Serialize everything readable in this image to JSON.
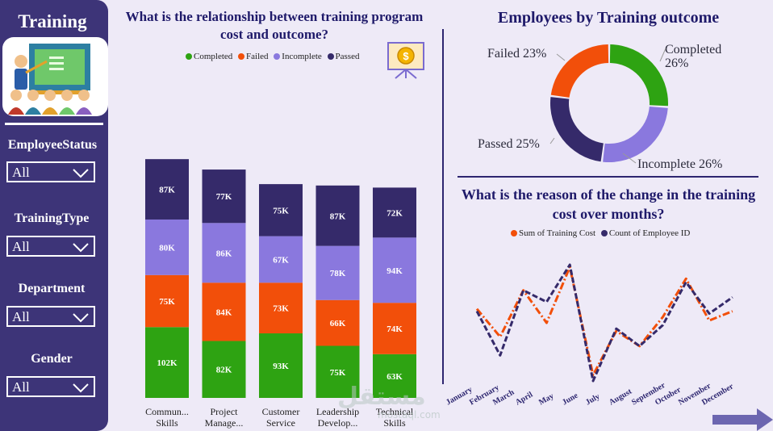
{
  "sidebar": {
    "title": "Training",
    "filters": [
      {
        "label": "EmployeeStatus",
        "value": "All"
      },
      {
        "label": "TrainingType",
        "value": "All"
      },
      {
        "label": "Department",
        "value": "All"
      },
      {
        "label": "Gender",
        "value": "All"
      }
    ]
  },
  "colors": {
    "completed": "#2ea312",
    "failed": "#f24f0a",
    "incomplete": "#8a78de",
    "passed": "#352a6a",
    "sidebar": "#3d3478"
  },
  "watermark": {
    "text": "مستقل",
    "subtext": "mostaql.com"
  },
  "chart_data": [
    {
      "type": "bar",
      "stacked": true,
      "title": "What is the relationship between training program cost and outcome?",
      "categories": [
        "Commun... Skills",
        "Project Manage...",
        "Customer Service",
        "Leadership Develop...",
        "Technical Skills"
      ],
      "series": [
        {
          "name": "Completed",
          "values": [
            102,
            82,
            93,
            75,
            63
          ],
          "labels": [
            "102K",
            "82K",
            "93K",
            "75K",
            "63K"
          ]
        },
        {
          "name": "Failed",
          "values": [
            75,
            84,
            73,
            66,
            74
          ],
          "labels": [
            "75K",
            "84K",
            "73K",
            "66K",
            "74K"
          ]
        },
        {
          "name": "Incomplete",
          "values": [
            80,
            86,
            67,
            78,
            94
          ],
          "labels": [
            "80K",
            "86K",
            "67K",
            "78K",
            "94K"
          ]
        },
        {
          "name": "Passed",
          "values": [
            87,
            77,
            75,
            87,
            72
          ],
          "labels": [
            "87K",
            "77K",
            "75K",
            "87K",
            "72K"
          ]
        }
      ],
      "legend": [
        "Completed",
        "Failed",
        "Incomplete",
        "Passed"
      ]
    },
    {
      "type": "pie",
      "donut": true,
      "title": "Employees by Training outcome",
      "slices": [
        {
          "name": "Completed",
          "value": 26,
          "label": "Completed 26%"
        },
        {
          "name": "Incomplete",
          "value": 26,
          "label": "Incomplete 26%"
        },
        {
          "name": "Passed",
          "value": 25,
          "label": "Passed 25%"
        },
        {
          "name": "Failed",
          "value": 23,
          "label": "Failed 23%"
        }
      ]
    },
    {
      "type": "line",
      "title": "What is the reason of the change in the training cost over months?",
      "x": [
        "January",
        "February",
        "March",
        "April",
        "May",
        "June",
        "July",
        "August",
        "September",
        "October",
        "November",
        "December"
      ],
      "series": [
        {
          "name": "Sum of Training Cost",
          "values": [
            0.62,
            0.38,
            0.78,
            0.5,
            0.98,
            0.05,
            0.43,
            0.3,
            0.55,
            0.88,
            0.52,
            0.6
          ]
        },
        {
          "name": "Count of Employee ID",
          "values": [
            0.6,
            0.22,
            0.78,
            0.68,
            1.0,
            0.0,
            0.45,
            0.3,
            0.48,
            0.85,
            0.58,
            0.72
          ]
        }
      ],
      "legend": [
        "Sum of Training Cost",
        "Count of Employee ID"
      ]
    }
  ]
}
